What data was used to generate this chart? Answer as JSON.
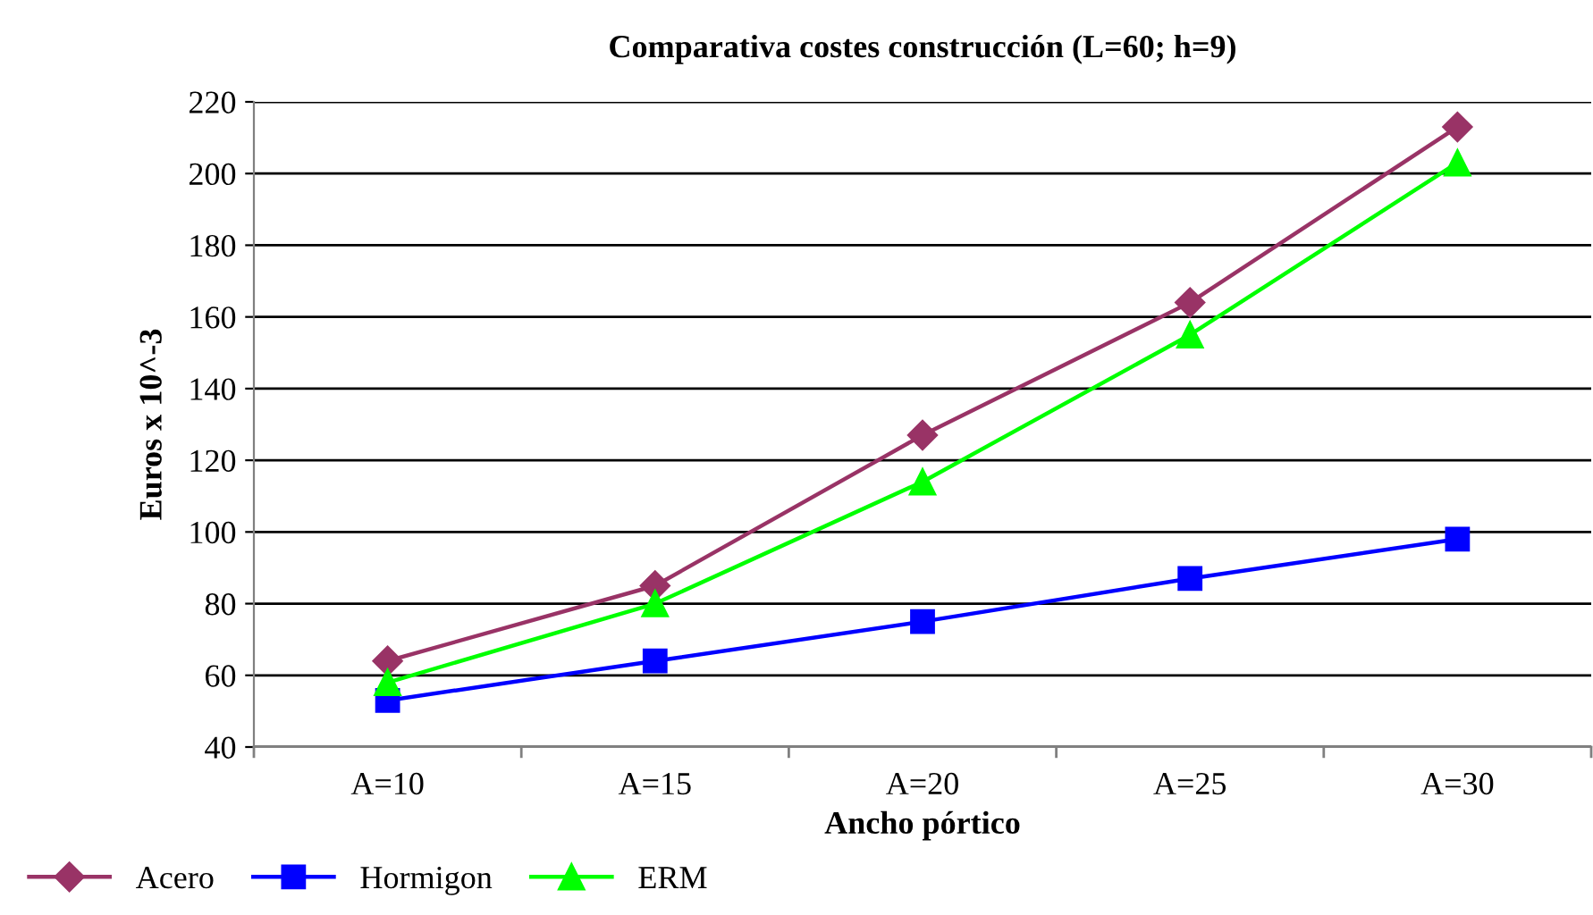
{
  "chart_data": {
    "type": "line",
    "title": "Comparativa costes construcción (L=60; h=9)",
    "xlabel": "Ancho pórtico",
    "ylabel": "Euros x 10^-3",
    "categories": [
      "A=10",
      "A=15",
      "A=20",
      "A=25",
      "A=30"
    ],
    "series": [
      {
        "name": "Acero",
        "color": "#993366",
        "marker": "diamond",
        "values": [
          64,
          85,
          127,
          164,
          213
        ]
      },
      {
        "name": "Hormigon",
        "color": "#0000ff",
        "marker": "square",
        "values": [
          53,
          64,
          75,
          87,
          98
        ]
      },
      {
        "name": "ERM",
        "color": "#00ff00",
        "marker": "triangle",
        "values": [
          58,
          80,
          114,
          155,
          203
        ]
      }
    ],
    "ylim": [
      40,
      220
    ],
    "yticks": [
      40,
      60,
      80,
      100,
      120,
      140,
      160,
      180,
      200,
      220
    ],
    "grid": "y",
    "legend": "bottom left",
    "line_style": "solid"
  }
}
